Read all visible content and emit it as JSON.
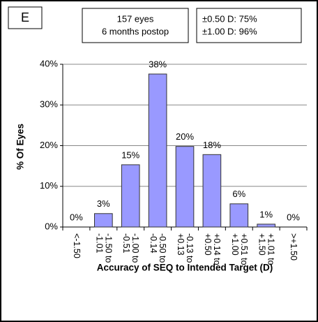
{
  "chart_data": {
    "type": "bar",
    "panel_label": "E",
    "annotations": [
      [
        "157 eyes",
        "6 months postop"
      ],
      [
        "±0.50 D: 75%",
        "±1.00 D: 96%"
      ]
    ],
    "xlabel": "Accuracy of SEQ to Intended Target (D)",
    "ylabel": "% Of Eyes",
    "categories": [
      "<-1.50",
      "-1.50 to -1.01",
      "-1.00 to -0.51",
      "-0.50 to -0.14",
      "-0.13 to +0.13",
      "+0.14 to +0.50",
      "+0.51 to +1.00",
      "+1.01 to +1.50",
      ">+1.50"
    ],
    "values": [
      0,
      3.3,
      15.3,
      37.6,
      19.8,
      17.8,
      5.7,
      0.7,
      0
    ],
    "value_labels": [
      "0%",
      "3%",
      "15%",
      "38%",
      "20%",
      "18%",
      "6%",
      "1%",
      "0%"
    ],
    "color": "#9999ff",
    "ylim": [
      0,
      40
    ],
    "yticks": [
      {
        "value": 0,
        "label": "0%"
      },
      {
        "value": 10,
        "label": "10%"
      },
      {
        "value": 20,
        "label": "20%"
      },
      {
        "value": 30,
        "label": "30%"
      },
      {
        "value": 40,
        "label": "40%"
      }
    ],
    "grid": true
  }
}
